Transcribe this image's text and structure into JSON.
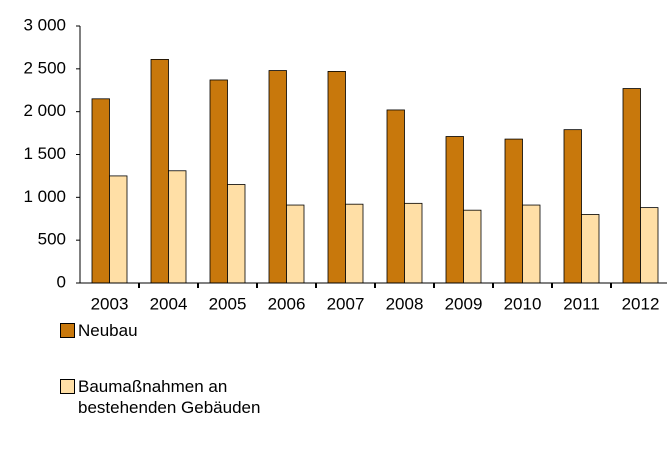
{
  "chart_data": {
    "type": "bar",
    "categories": [
      "2003",
      "2004",
      "2005",
      "2006",
      "2007",
      "2008",
      "2009",
      "2010",
      "2011",
      "2012"
    ],
    "series": [
      {
        "name": "Neubau",
        "color": "#c8780c",
        "values": [
          2150,
          2610,
          2370,
          2480,
          2470,
          2020,
          1710,
          1680,
          1790,
          2270
        ]
      },
      {
        "name": "Baumaßnahmen an bestehenden Gebäuden",
        "color": "#ffdfa6",
        "values": [
          1250,
          1310,
          1150,
          910,
          920,
          930,
          850,
          910,
          800,
          880
        ]
      }
    ],
    "ylim": [
      0,
      3000
    ],
    "yticks": [
      0,
      500,
      {
        "value": 1000,
        "label": "1 000"
      },
      {
        "value": 1500,
        "label": "1 500"
      },
      {
        "value": 2000,
        "label": "2 000"
      },
      {
        "value": 2500,
        "label": "2 500"
      },
      {
        "value": 3000,
        "label": "3 000"
      }
    ],
    "grid": false
  }
}
